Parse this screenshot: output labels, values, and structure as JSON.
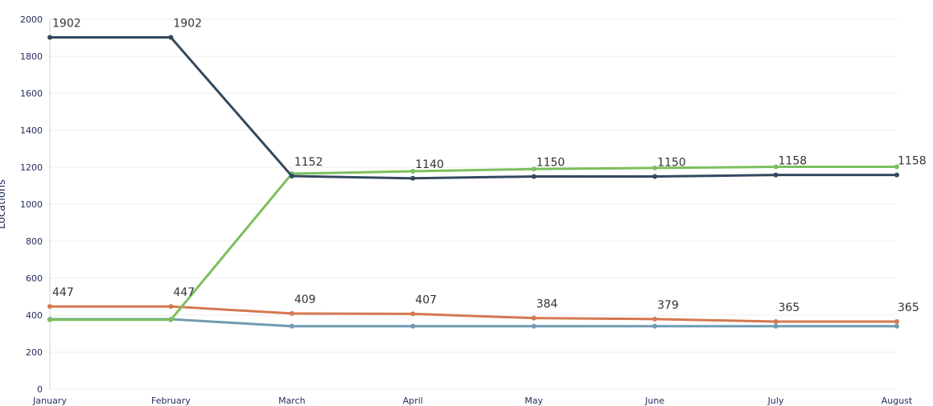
{
  "chart_data": {
    "type": "line",
    "ylabel": "Locations",
    "ylim": [
      0,
      2000
    ],
    "yticks": [
      0,
      200,
      400,
      600,
      800,
      1000,
      1200,
      1400,
      1600,
      1800,
      2000
    ],
    "categories": [
      "January",
      "February",
      "March",
      "April",
      "May",
      "June",
      "July",
      "August"
    ],
    "grid": true,
    "series": [
      {
        "key": "dark",
        "color": "#34495e",
        "values": [
          1902,
          1902,
          1152,
          1140,
          1150,
          1150,
          1158,
          1158
        ],
        "labels": [
          "1902",
          "1902",
          "1152",
          "1140",
          "1150",
          "1150",
          "1158",
          "1158"
        ]
      },
      {
        "key": "green",
        "color": "#7dbf5e",
        "values": [
          375,
          375,
          1165,
          1178,
          1190,
          1196,
          1202,
          1202
        ],
        "labels": []
      },
      {
        "key": "orange",
        "color": "#d4784f",
        "values": [
          447,
          447,
          409,
          407,
          384,
          379,
          365,
          365
        ],
        "labels": [
          "447",
          "447",
          "409",
          "407",
          "384",
          "379",
          "365",
          "365"
        ]
      },
      {
        "key": "blue",
        "color": "#6f9bb3",
        "values": [
          378,
          378,
          340,
          340,
          340,
          340,
          340,
          340
        ],
        "labels": []
      }
    ]
  }
}
